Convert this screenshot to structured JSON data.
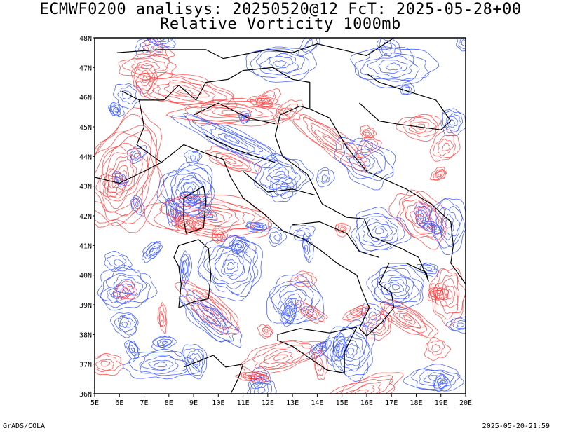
{
  "header": {
    "title_line1": "ECMWF0200 analisys: 20250520@12 FcT: 2025-05-28+00",
    "title_line2": "Relative Vorticity 1000mb"
  },
  "map": {
    "lon_labels": [
      "5E",
      "6E",
      "7E",
      "8E",
      "9E",
      "10E",
      "11E",
      "12E",
      "13E",
      "14E",
      "15E",
      "16E",
      "17E",
      "18E",
      "19E",
      "20E"
    ],
    "lat_labels": [
      "36N",
      "37N",
      "38N",
      "39N",
      "40N",
      "41N",
      "42N",
      "43N",
      "44N",
      "45N",
      "46N",
      "47N",
      "48N"
    ],
    "lon_range": [
      5,
      20
    ],
    "lat_range": [
      36,
      48
    ],
    "colors": {
      "positive_vorticity": "#ff3b3b",
      "negative_vorticity": "#2e4cff",
      "coastline": "#000000",
      "frame": "#000000"
    }
  },
  "footer": {
    "left": "GrADS/COLA",
    "right": "2025-05-20-21:59"
  }
}
